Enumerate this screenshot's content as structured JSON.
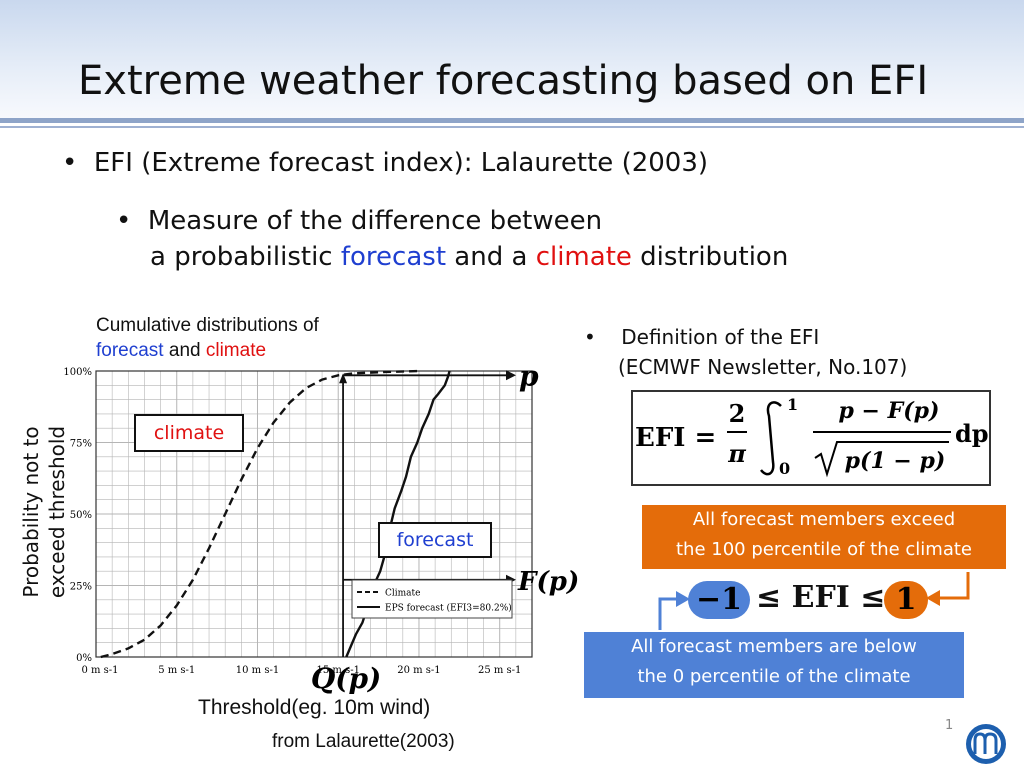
{
  "slide": {
    "title": "Extreme weather forecasting based on EFI",
    "bullet1": "EFI (Extreme forecast index): Lalaurette (2003)",
    "bullet2_line1": "Measure of the difference between",
    "bullet2_line2_a": "a probabilistic ",
    "bullet2_forecast": "forecast",
    "bullet2_line2_b": " and a ",
    "bullet2_climate": "climate",
    "bullet2_line2_c": " distribution",
    "page_number": "1"
  },
  "figure": {
    "caption_line1": "Cumulative distributions of",
    "caption_forecast": "forecast",
    "caption_and": " and ",
    "caption_climate": "climate",
    "y_axis_label": "Probability not to exceed threshold",
    "tag_climate": "climate",
    "tag_forecast": "forecast",
    "threshold_label": "Threshold(eg. 10m wind)",
    "source": "from Lalaurette(2003)",
    "marker_p": "p",
    "marker_Fp": "F(p)",
    "marker_Qp": "Q(p)"
  },
  "chart_data": {
    "type": "line",
    "xlabel": "",
    "ylabel": "",
    "xlim": [
      0,
      27
    ],
    "ylim": [
      0,
      100
    ],
    "x_ticks": [
      "0 m s-1",
      "5 m s-1",
      "10 m s-1",
      "15 m s-1",
      "20 m s-1",
      "25 m s-1"
    ],
    "x_tick_values": [
      0,
      5,
      10,
      15,
      20,
      25
    ],
    "y_ticks": [
      "0%",
      "25%",
      "50%",
      "75%",
      "100%"
    ],
    "y_tick_values": [
      0,
      25,
      50,
      75,
      100
    ],
    "grid": true,
    "legend_placement": "bottom-right",
    "series": [
      {
        "name": "Climate",
        "style": "dashed",
        "points": [
          [
            0.3,
            0
          ],
          [
            1,
            1
          ],
          [
            2,
            3
          ],
          [
            3,
            6
          ],
          [
            4,
            11
          ],
          [
            5,
            18
          ],
          [
            6,
            27
          ],
          [
            7,
            38
          ],
          [
            8,
            50
          ],
          [
            9,
            62
          ],
          [
            10,
            73
          ],
          [
            11,
            82
          ],
          [
            12,
            89
          ],
          [
            13,
            94
          ],
          [
            14,
            97
          ],
          [
            15,
            98.5
          ],
          [
            16,
            99.2
          ],
          [
            18,
            99.7
          ],
          [
            20,
            100
          ]
        ]
      },
      {
        "name": "EPS forecast (EFI3=80.2%)",
        "style": "solid",
        "points": [
          [
            15.5,
            0
          ],
          [
            15.8,
            4
          ],
          [
            16.1,
            8
          ],
          [
            16.5,
            12
          ],
          [
            16.9,
            19
          ],
          [
            17.2,
            25
          ],
          [
            17.6,
            30
          ],
          [
            17.9,
            36
          ],
          [
            18.2,
            45
          ],
          [
            18.5,
            52
          ],
          [
            18.9,
            58
          ],
          [
            19.2,
            63
          ],
          [
            19.5,
            70
          ],
          [
            19.9,
            75
          ],
          [
            20.2,
            80
          ],
          [
            20.6,
            85
          ],
          [
            20.9,
            90
          ],
          [
            21.2,
            92
          ],
          [
            21.6,
            95
          ],
          [
            21.8,
            98
          ],
          [
            21.9,
            100
          ]
        ]
      }
    ]
  },
  "efi_definition": {
    "bullet_line1": "Definition of the EFI",
    "bullet_line2": "(ECMWF Newsletter, No.107)",
    "formula_lhs": "EFI =",
    "formula_frac_num": "2",
    "formula_frac_den": "π",
    "formula_int_upper": "1",
    "formula_int_lower": "0",
    "formula_numerator": "p − F(p)",
    "formula_denominator": "p(1 − p)",
    "formula_dp": "dp"
  },
  "range": {
    "lower": "−1",
    "middle": "≤ EFI ≤",
    "upper": "1",
    "upper_note_line1": "All forecast members exceed",
    "upper_note_line2": "the 100 percentile of the climate",
    "lower_note_line1": "All forecast members are below",
    "lower_note_line2": "the 0 percentile of the climate"
  },
  "colors": {
    "forecast": "#1f3fd0",
    "climate": "#e01010",
    "orange_box": "#e46c0a",
    "blue_box": "#4f81d6"
  }
}
